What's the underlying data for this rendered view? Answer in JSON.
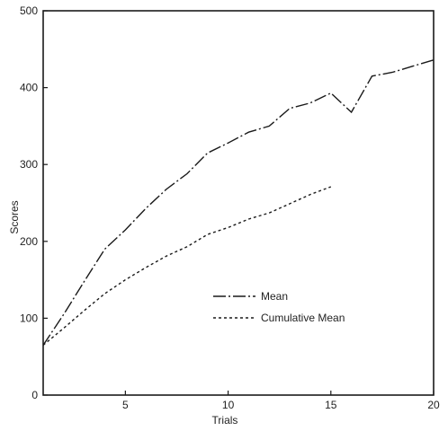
{
  "chart_data": {
    "type": "line",
    "title": "",
    "xlabel": "Trials",
    "ylabel": "Scores",
    "xlim": [
      1,
      20
    ],
    "ylim": [
      0,
      500
    ],
    "xticks": [
      5,
      10,
      15,
      20
    ],
    "yticks": [
      0,
      100,
      200,
      300,
      400,
      500
    ],
    "xtick_labels": [
      "5",
      "10",
      "15",
      "20"
    ],
    "ytick_labels": [
      "0",
      "100",
      "200",
      "300",
      "400",
      "500"
    ],
    "grid": false,
    "legend_position": "center-right",
    "series": [
      {
        "name": "Mean",
        "style": "long-dash",
        "x": [
          1,
          2,
          3,
          4,
          5,
          6,
          7,
          8,
          9,
          10,
          11,
          12,
          13,
          14,
          15,
          16,
          17,
          18,
          19,
          20
        ],
        "y": [
          65,
          105,
          148,
          190,
          215,
          243,
          268,
          288,
          315,
          328,
          342,
          350,
          373,
          380,
          393,
          368,
          415,
          420,
          428,
          436
        ]
      },
      {
        "name": "Cumulative Mean",
        "style": "short-dash",
        "x": [
          1,
          2,
          3,
          4,
          5,
          6,
          7,
          8,
          9,
          10,
          11,
          12,
          13,
          14,
          15
        ],
        "y": [
          65,
          87,
          110,
          132,
          150,
          166,
          181,
          193,
          209,
          218,
          229,
          237,
          249,
          261,
          271
        ]
      }
    ]
  }
}
